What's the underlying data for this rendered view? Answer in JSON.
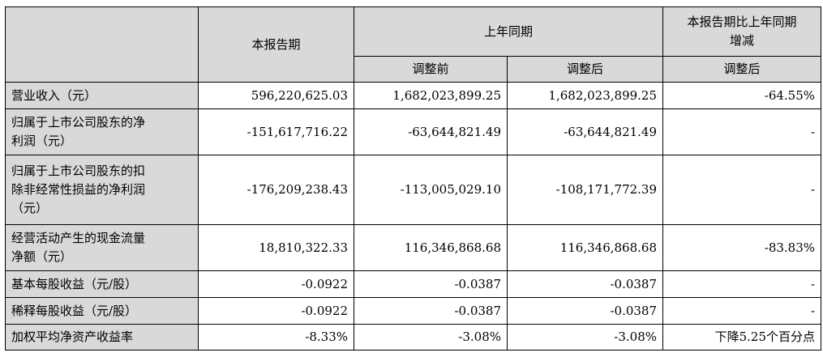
{
  "header": {
    "current_period": "本报告期",
    "prior_year_period": "上年同期",
    "change_line1": "本报告期比上年同期",
    "change_line2": "增减",
    "before_adjustment": "调整前",
    "after_adjustment": "调整后",
    "change_after_adjustment": "调整后"
  },
  "rows": [
    {
      "label_lines": [
        "营业收入（元）"
      ],
      "current": "596,220,625.03",
      "before": "1,682,023,899.25",
      "after": "1,682,023,899.25",
      "change": "-64.55%"
    },
    {
      "label_lines": [
        "归属于上市公司股东的净",
        "利润（元）"
      ],
      "current": "-151,617,716.22",
      "before": "-63,644,821.49",
      "after": "-63,644,821.49",
      "change": "-"
    },
    {
      "label_lines": [
        "归属于上市公司股东的扣",
        "除非经常性损益的净利润",
        "（元）"
      ],
      "current": "-176,209,238.43",
      "before": "-113,005,029.10",
      "after": "-108,171,772.39",
      "change": "-"
    },
    {
      "label_lines": [
        "经营活动产生的现金流量",
        "净额（元）"
      ],
      "current": "18,810,322.33",
      "before": "116,346,868.68",
      "after": "116,346,868.68",
      "change": "-83.83%"
    },
    {
      "label_lines": [
        "基本每股收益（元/股）"
      ],
      "current": "-0.0922",
      "before": "-0.0387",
      "after": "-0.0387",
      "change": "-"
    },
    {
      "label_lines": [
        "稀释每股收益（元/股）"
      ],
      "current": "-0.0922",
      "before": "-0.0387",
      "after": "-0.0387",
      "change": "-"
    },
    {
      "label_lines": [
        "加权平均净资产收益率"
      ],
      "current": "-8.33%",
      "before": "-3.08%",
      "after": "-3.08%",
      "change": "下降5.25个百分点"
    }
  ]
}
